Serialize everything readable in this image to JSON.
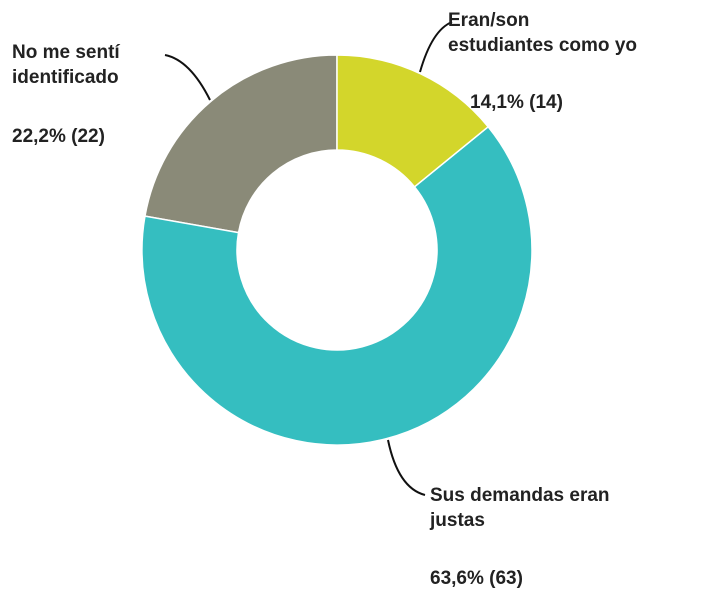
{
  "chart_data": {
    "type": "donut",
    "categories": [
      "Eran/son\nestudiantes como yo",
      "Sus demandas eran\njustas",
      "No me sentí\nidentificado"
    ],
    "values": [
      14.1,
      63.6,
      22.2
    ],
    "value_labels": [
      "14,1% (14)",
      "63,6% (63)",
      "22,2% (22)"
    ],
    "colors": [
      "#d3d62b",
      "#35bec0",
      "#8a8a78"
    ]
  }
}
